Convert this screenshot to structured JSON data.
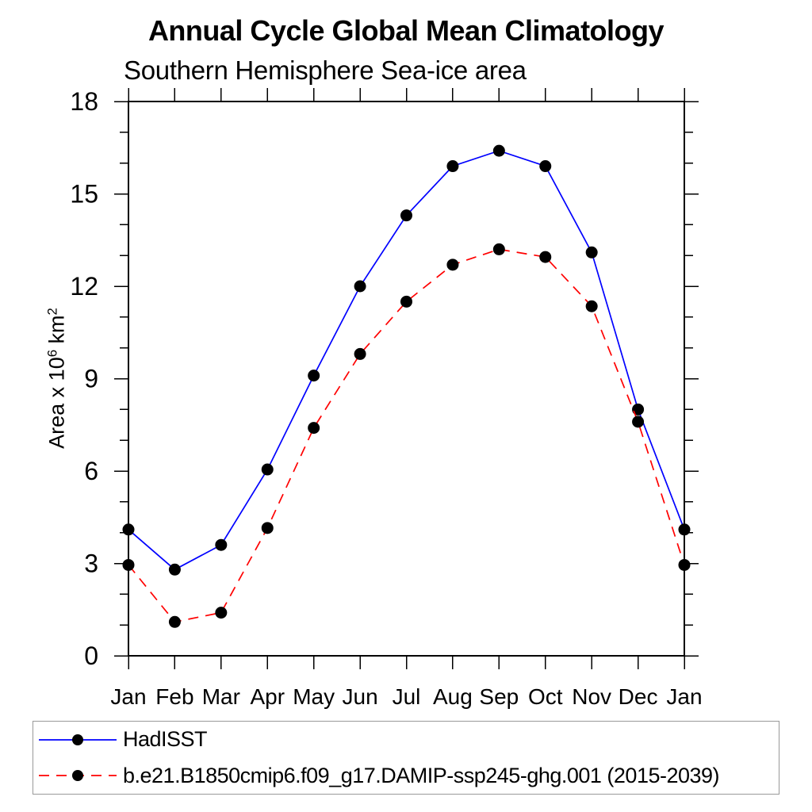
{
  "header": {
    "title": "Annual Cycle Global Mean Climatology",
    "subtitle": "Southern Hemisphere Sea-ice area"
  },
  "y_axis": {
    "label_prefix": "Area x 10",
    "label_sup1": "6",
    "label_mid": " km",
    "label_sup2": "2"
  },
  "colors": {
    "axis": "#000000",
    "marker": "#000000",
    "hadisst_line": "#0000ff",
    "model_line": "#ff0000",
    "legend_border": "#999999",
    "background": "#ffffff"
  },
  "chart_data": {
    "type": "line",
    "title": "Annual Cycle Global Mean Climatology",
    "subtitle": "Southern Hemisphere Sea-ice area",
    "xlabel": "",
    "ylabel": "Area x 10^6 km^2",
    "categories": [
      "Jan",
      "Feb",
      "Mar",
      "Apr",
      "May",
      "Jun",
      "Jul",
      "Aug",
      "Sep",
      "Oct",
      "Nov",
      "Dec",
      "Jan"
    ],
    "ylim": [
      0,
      18
    ],
    "ytick_major": [
      0,
      3,
      6,
      9,
      12,
      15,
      18
    ],
    "ytick_minor_step": 1,
    "grid": false,
    "frame": "box",
    "legend_position": "bottom-outside",
    "series": [
      {
        "name": "HadISST",
        "color": "#0000ff",
        "line_style": "solid",
        "marker": "circle",
        "marker_color": "#000000",
        "values": [
          4.1,
          2.8,
          3.6,
          6.05,
          9.1,
          12.0,
          14.3,
          15.9,
          16.4,
          15.9,
          13.1,
          8.0,
          4.1
        ]
      },
      {
        "name": "b.e21.B1850cmip6.f09_g17.DAMIP-ssp245-ghg.001 (2015-2039)",
        "color": "#ff0000",
        "line_style": "dashed",
        "marker": "circle",
        "marker_color": "#000000",
        "values": [
          2.95,
          1.1,
          1.4,
          4.15,
          7.4,
          9.8,
          11.5,
          12.7,
          13.2,
          12.95,
          11.35,
          7.6,
          2.95
        ]
      }
    ]
  }
}
